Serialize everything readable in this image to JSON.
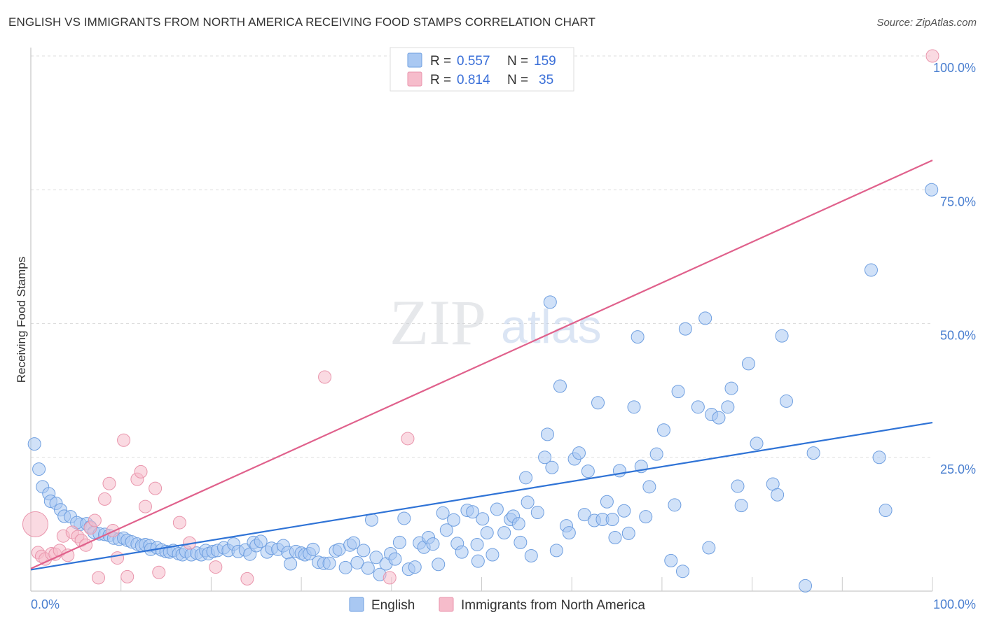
{
  "title": "ENGLISH VS IMMIGRANTS FROM NORTH AMERICA RECEIVING FOOD STAMPS CORRELATION CHART",
  "source": "Source: ZipAtlas.com",
  "watermark": "ZIPatlas",
  "colors": {
    "blue_fill": "#a9c8f2",
    "blue_stroke": "#6f9fe0",
    "blue_line": "#2f73d6",
    "pink_fill": "#f6bccb",
    "pink_stroke": "#e995ac",
    "pink_line": "#e0618c",
    "tick_label": "#4a7fd0",
    "grid": "#dddddd"
  },
  "legend": {
    "rows": [
      {
        "r_label": "R =",
        "r_value": "0.557",
        "n_label": "N =",
        "n_value": "159"
      },
      {
        "r_label": "R =",
        "r_value": "0.814",
        "n_label": "N =",
        "n_value": "35"
      }
    ]
  },
  "bottom_legend": [
    "English",
    "Immigrants from North America"
  ],
  "chart_data": {
    "type": "scatter",
    "title": "ENGLISH VS IMMIGRANTS FROM NORTH AMERICA RECEIVING FOOD STAMPS CORRELATION CHART",
    "xlabel": "",
    "ylabel": "Receiving Food Stamps",
    "xlim": [
      0,
      100
    ],
    "ylim": [
      0,
      100
    ],
    "x_tick_labels": [
      "0.0%",
      "100.0%"
    ],
    "y_tick_labels": [
      "25.0%",
      "50.0%",
      "75.0%",
      "100.0%"
    ],
    "y_ticks": [
      25,
      50,
      75,
      100
    ],
    "grid": true,
    "legend_position": "top-center",
    "series": [
      {
        "name": "English",
        "R": 0.557,
        "N": 159,
        "trend": {
          "x": [
            0,
            100
          ],
          "y": [
            4.0,
            31.5
          ]
        },
        "points": [
          [
            0.4,
            27.5
          ],
          [
            0.9,
            22.8
          ],
          [
            1.3,
            19.5
          ],
          [
            2.0,
            18.2
          ],
          [
            2.2,
            16.8
          ],
          [
            2.8,
            16.4
          ],
          [
            3.3,
            15.2
          ],
          [
            3.7,
            14.0
          ],
          [
            4.4,
            13.9
          ],
          [
            5.5,
            12.5
          ],
          [
            5.1,
            12.8
          ],
          [
            6.2,
            12.6
          ],
          [
            6.6,
            12.0
          ],
          [
            7.0,
            11.0
          ],
          [
            7.6,
            10.7
          ],
          [
            8.2,
            10.6
          ],
          [
            8.7,
            10.4
          ],
          [
            9.2,
            9.9
          ],
          [
            9.8,
            9.7
          ],
          [
            10.3,
            9.9
          ],
          [
            10.7,
            9.5
          ],
          [
            11.2,
            9.2
          ],
          [
            11.8,
            8.8
          ],
          [
            12.3,
            8.5
          ],
          [
            12.7,
            8.7
          ],
          [
            13.2,
            8.5
          ],
          [
            13.3,
            7.8
          ],
          [
            14.0,
            8.1
          ],
          [
            14.5,
            7.7
          ],
          [
            15.0,
            7.4
          ],
          [
            15.4,
            7.3
          ],
          [
            15.8,
            7.6
          ],
          [
            16.4,
            7.0
          ],
          [
            16.8,
            6.8
          ],
          [
            17.2,
            7.4
          ],
          [
            17.8,
            6.8
          ],
          [
            18.4,
            7.1
          ],
          [
            18.9,
            6.8
          ],
          [
            19.4,
            7.6
          ],
          [
            19.7,
            7.0
          ],
          [
            20.2,
            7.4
          ],
          [
            20.7,
            7.6
          ],
          [
            21.4,
            8.1
          ],
          [
            21.9,
            7.6
          ],
          [
            22.5,
            8.8
          ],
          [
            23.0,
            7.4
          ],
          [
            23.8,
            7.7
          ],
          [
            24.3,
            6.9
          ],
          [
            24.7,
            9.1
          ],
          [
            25.0,
            8.5
          ],
          [
            25.5,
            9.3
          ],
          [
            26.2,
            7.3
          ],
          [
            26.7,
            8.0
          ],
          [
            27.4,
            7.8
          ],
          [
            28.0,
            8.5
          ],
          [
            28.5,
            7.2
          ],
          [
            28.8,
            5.1
          ],
          [
            29.4,
            7.4
          ],
          [
            30.0,
            7.1
          ],
          [
            30.4,
            6.8
          ],
          [
            30.9,
            7.0
          ],
          [
            31.3,
            7.8
          ],
          [
            31.9,
            5.4
          ],
          [
            32.5,
            5.2
          ],
          [
            33.1,
            5.2
          ],
          [
            33.8,
            7.5
          ],
          [
            34.2,
            7.8
          ],
          [
            34.9,
            4.4
          ],
          [
            35.4,
            8.6
          ],
          [
            35.8,
            9.0
          ],
          [
            36.2,
            5.3
          ],
          [
            36.9,
            7.6
          ],
          [
            37.4,
            4.3
          ],
          [
            37.8,
            13.3
          ],
          [
            38.3,
            6.3
          ],
          [
            38.7,
            3.1
          ],
          [
            39.4,
            5.1
          ],
          [
            39.9,
            7.0
          ],
          [
            40.4,
            6.0
          ],
          [
            40.9,
            9.1
          ],
          [
            41.4,
            13.6
          ],
          [
            41.9,
            4.1
          ],
          [
            42.6,
            4.5
          ],
          [
            43.1,
            9.0
          ],
          [
            43.6,
            8.2
          ],
          [
            44.1,
            10.0
          ],
          [
            44.6,
            8.8
          ],
          [
            45.2,
            5.0
          ],
          [
            45.7,
            14.6
          ],
          [
            46.1,
            11.4
          ],
          [
            46.9,
            13.3
          ],
          [
            47.3,
            8.9
          ],
          [
            47.8,
            7.3
          ],
          [
            48.4,
            15.1
          ],
          [
            49.0,
            14.8
          ],
          [
            49.5,
            8.7
          ],
          [
            49.6,
            5.6
          ],
          [
            50.1,
            13.5
          ],
          [
            50.6,
            10.9
          ],
          [
            51.2,
            6.8
          ],
          [
            51.7,
            15.3
          ],
          [
            52.5,
            10.9
          ],
          [
            53.2,
            13.4
          ],
          [
            53.5,
            14.0
          ],
          [
            54.1,
            12.6
          ],
          [
            54.3,
            9.1
          ],
          [
            54.9,
            21.2
          ],
          [
            55.1,
            16.6
          ],
          [
            55.5,
            6.6
          ],
          [
            56.2,
            14.7
          ],
          [
            57.0,
            25.0
          ],
          [
            57.3,
            29.3
          ],
          [
            57.8,
            23.1
          ],
          [
            58.3,
            7.6
          ],
          [
            58.7,
            38.3
          ],
          [
            59.4,
            12.2
          ],
          [
            59.7,
            10.9
          ],
          [
            60.3,
            24.7
          ],
          [
            60.8,
            25.8
          ],
          [
            61.4,
            14.3
          ],
          [
            61.8,
            22.4
          ],
          [
            62.5,
            13.2
          ],
          [
            62.9,
            35.2
          ],
          [
            63.4,
            13.4
          ],
          [
            63.9,
            16.7
          ],
          [
            64.5,
            13.4
          ],
          [
            64.8,
            10.0
          ],
          [
            65.3,
            22.5
          ],
          [
            65.8,
            15.0
          ],
          [
            66.3,
            10.8
          ],
          [
            66.9,
            34.4
          ],
          [
            67.3,
            47.5
          ],
          [
            67.7,
            23.3
          ],
          [
            68.2,
            13.9
          ],
          [
            68.6,
            19.5
          ],
          [
            69.4,
            25.6
          ],
          [
            70.2,
            30.1
          ],
          [
            71.0,
            5.7
          ],
          [
            71.4,
            16.1
          ],
          [
            71.8,
            37.3
          ],
          [
            72.3,
            3.7
          ],
          [
            72.6,
            49.0
          ],
          [
            74.0,
            34.4
          ],
          [
            74.8,
            51.0
          ],
          [
            75.2,
            8.1
          ],
          [
            75.5,
            33.0
          ],
          [
            76.3,
            32.4
          ],
          [
            77.3,
            34.4
          ],
          [
            77.7,
            37.9
          ],
          [
            78.4,
            19.6
          ],
          [
            78.8,
            16.0
          ],
          [
            79.6,
            42.5
          ],
          [
            80.5,
            27.6
          ],
          [
            82.3,
            20.0
          ],
          [
            82.8,
            18.0
          ],
          [
            83.3,
            47.7
          ],
          [
            83.8,
            35.5
          ],
          [
            85.9,
            1.0
          ],
          [
            86.8,
            25.8
          ],
          [
            93.2,
            60.0
          ],
          [
            94.1,
            25.0
          ],
          [
            94.8,
            15.1
          ],
          [
            99.9,
            75.0
          ],
          [
            57.6,
            54.0
          ]
        ]
      },
      {
        "name": "Immigrants from North America",
        "R": 0.814,
        "N": 35,
        "trend": {
          "x": [
            0,
            100
          ],
          "y": [
            4.2,
            80.5
          ]
        },
        "points": [
          [
            0.5,
            12.5
          ],
          [
            0.8,
            7.2
          ],
          [
            1.2,
            6.5
          ],
          [
            1.6,
            6.0
          ],
          [
            2.3,
            7.0
          ],
          [
            2.7,
            6.9
          ],
          [
            3.2,
            7.6
          ],
          [
            3.6,
            10.3
          ],
          [
            4.1,
            6.7
          ],
          [
            4.6,
            11.0
          ],
          [
            5.2,
            10.2
          ],
          [
            5.6,
            9.5
          ],
          [
            6.1,
            8.6
          ],
          [
            6.6,
            11.8
          ],
          [
            7.1,
            13.2
          ],
          [
            7.5,
            2.5
          ],
          [
            8.2,
            17.2
          ],
          [
            8.7,
            20.1
          ],
          [
            9.1,
            11.3
          ],
          [
            9.6,
            6.2
          ],
          [
            10.3,
            28.2
          ],
          [
            10.7,
            2.7
          ],
          [
            11.8,
            20.9
          ],
          [
            12.2,
            22.3
          ],
          [
            12.7,
            15.8
          ],
          [
            13.8,
            19.2
          ],
          [
            14.2,
            3.5
          ],
          [
            16.5,
            12.8
          ],
          [
            17.6,
            9.0
          ],
          [
            20.5,
            4.5
          ],
          [
            24.0,
            2.3
          ],
          [
            32.6,
            40.0
          ],
          [
            39.8,
            2.5
          ],
          [
            41.8,
            28.5
          ],
          [
            100.0,
            100.0
          ]
        ]
      }
    ]
  }
}
